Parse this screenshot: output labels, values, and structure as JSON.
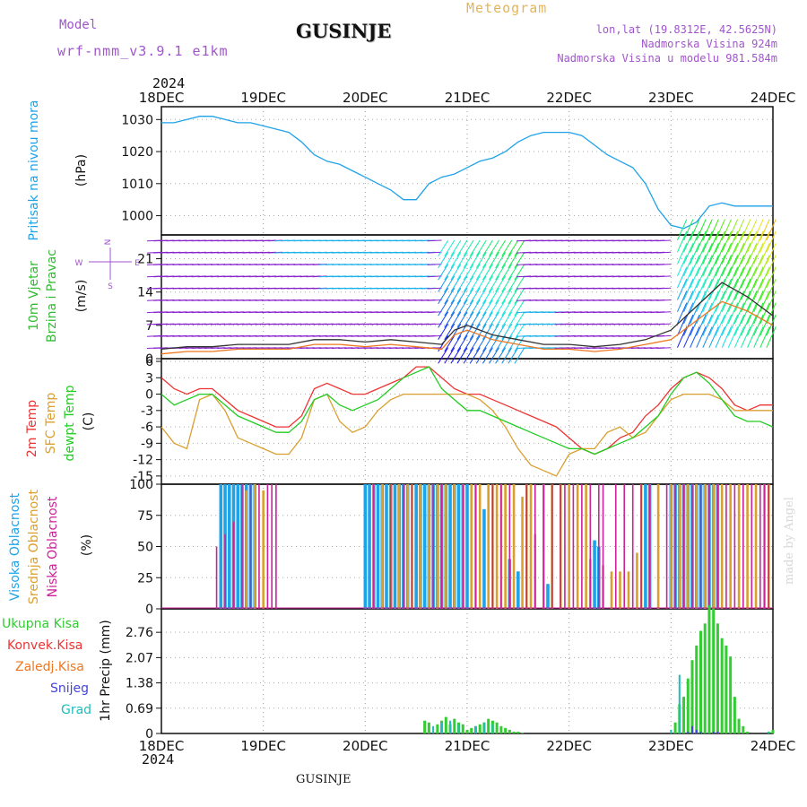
{
  "header": {
    "model_label": "Model",
    "model_name": "wrf-nmm_v3.9.1 e1km",
    "station": "GUSINJE",
    "meteogram_label": "Meteogram",
    "lonlat": "lon,lat (19.8312E, 42.5625N)",
    "elevation": "Nadmorska Visina 924m",
    "model_elevation": "Nadmorska Visina u modelu 981.584m",
    "year": "2024",
    "footer_station": "GUSINJE",
    "credit": "made by Angel"
  },
  "colors": {
    "pressure": "#1fa3e8",
    "temp2m": "#ee3333",
    "sfc": "#d9a030",
    "dewpt": "#22cc22",
    "high_cloud": "#1fa3e8",
    "mid_cloud": "#d9a030",
    "low_cloud": "#cc2299",
    "total_precip": "#33cc33",
    "conv_precip": "#ee3333",
    "frz_precip": "#ee7722",
    "snow": "#4444dd",
    "graupel": "#22bbbb",
    "wind_purple": "#8822cc",
    "wind_blue": "#1e6ee8"
  },
  "chart_data": [
    {
      "type": "line",
      "panel": "pressure",
      "ylabel": "Pritisak na nivou mora",
      "units": "(hPa)",
      "yticks": [
        1000,
        1010,
        1020,
        1030
      ],
      "ylim": [
        994,
        1034
      ],
      "xticks": [
        "18DEC",
        "19DEC",
        "20DEC",
        "21DEC",
        "22DEC",
        "23DEC",
        "24DEC"
      ],
      "xlim": [
        0,
        144
      ],
      "grid": true,
      "series": [
        {
          "key": "pressure",
          "x": [
            0,
            3,
            6,
            9,
            12,
            15,
            18,
            21,
            24,
            27,
            30,
            33,
            36,
            39,
            42,
            45,
            48,
            51,
            54,
            57,
            60,
            63,
            66,
            69,
            72,
            75,
            78,
            81,
            84,
            87,
            90,
            93,
            96,
            99,
            102,
            105,
            108,
            111,
            114,
            117,
            120,
            123,
            126,
            129,
            132,
            135,
            138,
            141,
            144
          ],
          "values": [
            1029,
            1029,
            1030,
            1031,
            1031,
            1030,
            1029,
            1029,
            1028,
            1027,
            1026,
            1023,
            1019,
            1017,
            1016,
            1014,
            1012,
            1010,
            1008,
            1005,
            1005,
            1010,
            1012,
            1013,
            1015,
            1017,
            1018,
            1020,
            1023,
            1025,
            1026,
            1026,
            1026,
            1025,
            1022,
            1019,
            1017,
            1015,
            1010,
            1002,
            997,
            996,
            998,
            1003,
            1004,
            1003,
            1003,
            1003,
            1003
          ]
        }
      ]
    },
    {
      "type": "line",
      "panel": "wind",
      "ylabel": "10m Vjetar Brzina i Pravac",
      "units": "(m/s)",
      "compass": {
        "n": "N",
        "e": "E",
        "s": "S",
        "w": "W"
      },
      "yticks": [
        0,
        7,
        14,
        21
      ],
      "ylim": [
        0,
        26
      ],
      "xlim": [
        0,
        144
      ],
      "grid": true,
      "series": [
        {
          "key": "wind_speed",
          "x": [
            0,
            6,
            12,
            18,
            24,
            30,
            36,
            42,
            48,
            54,
            60,
            66,
            69,
            72,
            78,
            84,
            90,
            96,
            102,
            108,
            114,
            120,
            126,
            132,
            138,
            144
          ],
          "values": [
            1,
            1.5,
            1.5,
            2,
            2,
            2,
            3,
            3,
            2.5,
            3,
            2.5,
            2,
            5,
            6,
            4,
            3,
            2,
            2,
            1.5,
            2,
            3,
            4,
            8,
            12,
            10,
            7
          ]
        },
        {
          "key": "wind_gust",
          "x": [
            0,
            6,
            12,
            18,
            24,
            30,
            36,
            42,
            48,
            54,
            60,
            66,
            69,
            72,
            78,
            84,
            90,
            96,
            102,
            108,
            114,
            120,
            126,
            132,
            138,
            144
          ],
          "values": [
            2,
            2.5,
            2.5,
            3,
            3,
            3,
            4,
            4,
            3.5,
            4,
            3.5,
            3,
            6,
            7,
            5,
            4,
            3,
            3,
            2.5,
            3,
            4,
            6,
            11,
            16,
            13,
            9
          ]
        }
      ]
    },
    {
      "type": "line",
      "panel": "temperature",
      "ylabels": [
        "2m Temp",
        "SFC Temp",
        "dewpt Temp"
      ],
      "units": "(C)",
      "yticks": [
        -15,
        -12,
        -9,
        -6,
        -3,
        0,
        3,
        6
      ],
      "ylim": [
        -16.5,
        6.5
      ],
      "xlim": [
        0,
        144
      ],
      "grid": true,
      "series": [
        {
          "key": "temp2m",
          "x": [
            0,
            3,
            6,
            9,
            12,
            15,
            18,
            21,
            24,
            27,
            30,
            33,
            36,
            39,
            42,
            45,
            48,
            51,
            54,
            57,
            60,
            63,
            66,
            69,
            72,
            75,
            78,
            81,
            84,
            87,
            90,
            93,
            96,
            99,
            102,
            105,
            108,
            111,
            114,
            117,
            120,
            123,
            126,
            129,
            132,
            135,
            138,
            141,
            144
          ],
          "values": [
            3,
            1,
            0,
            1,
            1,
            -1,
            -3,
            -4,
            -5,
            -6,
            -6,
            -4,
            1,
            2,
            1,
            0,
            0,
            1,
            2,
            3,
            5,
            5,
            3,
            1,
            0,
            0,
            -1,
            -2,
            -3,
            -4,
            -5,
            -6,
            -8,
            -10,
            -11,
            -10,
            -8,
            -7,
            -4,
            -2,
            1,
            3,
            4,
            3,
            1,
            -2,
            -3,
            -2,
            -2
          ]
        },
        {
          "key": "sfc",
          "x": [
            0,
            3,
            6,
            9,
            12,
            15,
            18,
            21,
            24,
            27,
            30,
            33,
            36,
            39,
            42,
            45,
            48,
            51,
            54,
            57,
            60,
            63,
            66,
            69,
            72,
            75,
            78,
            81,
            84,
            87,
            90,
            93,
            96,
            99,
            102,
            105,
            108,
            111,
            114,
            117,
            120,
            123,
            126,
            129,
            132,
            135,
            138,
            141,
            144
          ],
          "values": [
            -6,
            -9,
            -10,
            -1,
            0,
            -3,
            -8,
            -9,
            -10,
            -11,
            -11,
            -8,
            -1,
            0,
            -5,
            -7,
            -6,
            -3,
            -1,
            0,
            0,
            0,
            0,
            0,
            0,
            -1,
            -3,
            -6,
            -10,
            -13,
            -14,
            -15,
            -11,
            -10,
            -10,
            -7,
            -6,
            -8,
            -7,
            -4,
            -1,
            0,
            0,
            0,
            -1,
            -3,
            -3,
            -3,
            -3
          ]
        },
        {
          "key": "dewpt",
          "x": [
            0,
            3,
            6,
            9,
            12,
            15,
            18,
            21,
            24,
            27,
            30,
            33,
            36,
            39,
            42,
            45,
            48,
            51,
            54,
            57,
            60,
            63,
            66,
            69,
            72,
            75,
            78,
            81,
            84,
            87,
            90,
            93,
            96,
            99,
            102,
            105,
            108,
            111,
            114,
            117,
            120,
            123,
            126,
            129,
            132,
            135,
            138,
            141,
            144
          ],
          "values": [
            0,
            -2,
            -1,
            0,
            0,
            -2,
            -4,
            -5,
            -6,
            -7,
            -7,
            -5,
            -1,
            0,
            -2,
            -3,
            -2,
            -1,
            1,
            3,
            4,
            5,
            1,
            -1,
            -3,
            -3,
            -4,
            -5,
            -6,
            -7,
            -8,
            -9,
            -10,
            -10,
            -11,
            -10,
            -9,
            -8,
            -6,
            -4,
            0,
            3,
            4,
            2,
            -1,
            -4,
            -5,
            -5,
            -6
          ]
        }
      ]
    },
    {
      "type": "bar",
      "panel": "cloud",
      "ylabels": [
        "Visoka Oblacnost",
        "Srednja Oblacnost",
        "Niska Oblacnost"
      ],
      "units": "(%)",
      "yticks": [
        0,
        25,
        50,
        75,
        100
      ],
      "ylim": [
        0,
        100
      ],
      "xlim": [
        0,
        144
      ],
      "grid": true,
      "series": [
        {
          "key": "high_cloud",
          "x": [
            14,
            15,
            16,
            17,
            18,
            19,
            20,
            21,
            22,
            48,
            49,
            50,
            51,
            52,
            53,
            54,
            55,
            56,
            57,
            58,
            60,
            61,
            62,
            63,
            64,
            65,
            66,
            67,
            68,
            69,
            70,
            71,
            72,
            76,
            82,
            84,
            91,
            102,
            103,
            114,
            115,
            120,
            121,
            122,
            123,
            124,
            125,
            126,
            127,
            128,
            129,
            130,
            131
          ],
          "values": [
            100,
            100,
            100,
            100,
            100,
            100,
            100,
            100,
            100,
            100,
            100,
            100,
            100,
            100,
            100,
            100,
            100,
            100,
            100,
            100,
            100,
            100,
            100,
            100,
            100,
            100,
            100,
            100,
            100,
            100,
            100,
            100,
            100,
            80,
            40,
            30,
            20,
            55,
            50,
            100,
            100,
            100,
            100,
            100,
            100,
            100,
            100,
            100,
            100,
            100,
            100,
            100,
            100
          ]
        },
        {
          "key": "mid_cloud",
          "x": [
            20,
            22,
            24,
            50,
            52,
            54,
            56,
            58,
            59,
            61,
            63,
            65,
            67,
            69,
            71,
            73,
            74,
            75,
            77,
            78,
            79,
            80,
            81,
            83,
            85,
            86,
            87,
            88,
            90,
            92,
            94,
            96,
            98,
            100,
            101,
            104,
            106,
            108,
            110,
            112,
            113,
            117,
            120,
            122,
            124,
            126,
            128,
            130,
            132,
            134,
            136,
            138,
            140,
            142,
            143
          ],
          "values": [
            95,
            100,
            95,
            100,
            100,
            100,
            100,
            100,
            100,
            100,
            100,
            100,
            100,
            100,
            100,
            100,
            100,
            100,
            100,
            100,
            100,
            100,
            100,
            100,
            90,
            100,
            100,
            60,
            100,
            100,
            100,
            100,
            100,
            100,
            40,
            35,
            30,
            30,
            30,
            45,
            100,
            100,
            100,
            100,
            100,
            100,
            100,
            100,
            100,
            100,
            100,
            100,
            100,
            100,
            100
          ]
        },
        {
          "key": "low_cloud",
          "x": [
            13,
            15,
            17,
            19,
            21,
            23,
            25,
            26,
            27,
            50,
            54,
            57,
            59,
            64,
            66,
            71,
            74,
            78,
            80,
            82,
            86,
            88,
            90,
            92,
            94,
            95,
            97,
            99,
            101,
            103,
            104,
            107,
            109,
            111,
            113,
            115,
            119,
            121,
            123,
            125,
            127,
            129,
            131,
            133,
            135,
            137,
            139,
            141,
            142,
            143
          ],
          "values": [
            50,
            60,
            70,
            100,
            100,
            100,
            100,
            100,
            100,
            100,
            100,
            100,
            100,
            100,
            100,
            100,
            100,
            100,
            100,
            100,
            100,
            100,
            100,
            100,
            100,
            100,
            100,
            100,
            100,
            100,
            100,
            100,
            100,
            100,
            100,
            100,
            100,
            100,
            100,
            100,
            100,
            100,
            100,
            100,
            100,
            100,
            100,
            100,
            100,
            100
          ]
        }
      ]
    },
    {
      "type": "bar",
      "panel": "precipitation",
      "ylabels": [
        "Ukupna Kisa",
        "Konvek.Kisa",
        "Zaledj.Kisa",
        "Snijeg",
        "Grad"
      ],
      "ylabel": "1hr Precip (mm)",
      "yticks": [
        "0",
        "0.69",
        "1.38",
        "2.07",
        "2.76"
      ],
      "ylim": [
        0,
        3.4
      ],
      "xlim": [
        0,
        144
      ],
      "grid": true,
      "series": [
        {
          "key": "total_precip",
          "x": [
            62,
            63,
            64,
            65,
            66,
            67,
            68,
            69,
            70,
            71,
            72,
            73,
            74,
            75,
            76,
            77,
            78,
            79,
            80,
            81,
            82,
            83,
            84,
            85,
            121,
            122,
            123,
            124,
            125,
            126,
            127,
            128,
            129,
            130,
            131,
            132,
            133,
            134,
            135,
            136,
            137,
            138,
            143,
            144
          ],
          "values": [
            0.35,
            0.3,
            0.0,
            0.25,
            0.35,
            0.45,
            0.25,
            0.4,
            0.3,
            0.25,
            0.1,
            0.15,
            0.2,
            0.25,
            0.3,
            0.4,
            0.35,
            0.3,
            0.2,
            0.15,
            0.1,
            0.05,
            0.05,
            0.02,
            0.3,
            0.8,
            1.0,
            1.5,
            2.0,
            2.4,
            2.8,
            3.0,
            3.5,
            3.4,
            3.0,
            2.6,
            2.4,
            2.1,
            1.0,
            0.4,
            0.2,
            0.05,
            0.05,
            0.1
          ]
        },
        {
          "key": "snow",
          "x": [
            124,
            125,
            126,
            127,
            130,
            131
          ],
          "values": [
            0.05,
            0.2,
            0.1,
            0.05,
            0.05,
            0.05
          ]
        },
        {
          "key": "graupel",
          "x": [
            64,
            66,
            68,
            70,
            74,
            76,
            78,
            120,
            122,
            143
          ],
          "values": [
            0.2,
            0.3,
            0.35,
            0.25,
            0.2,
            0.3,
            0.25,
            0.1,
            1.6,
            0.05
          ]
        }
      ]
    }
  ]
}
